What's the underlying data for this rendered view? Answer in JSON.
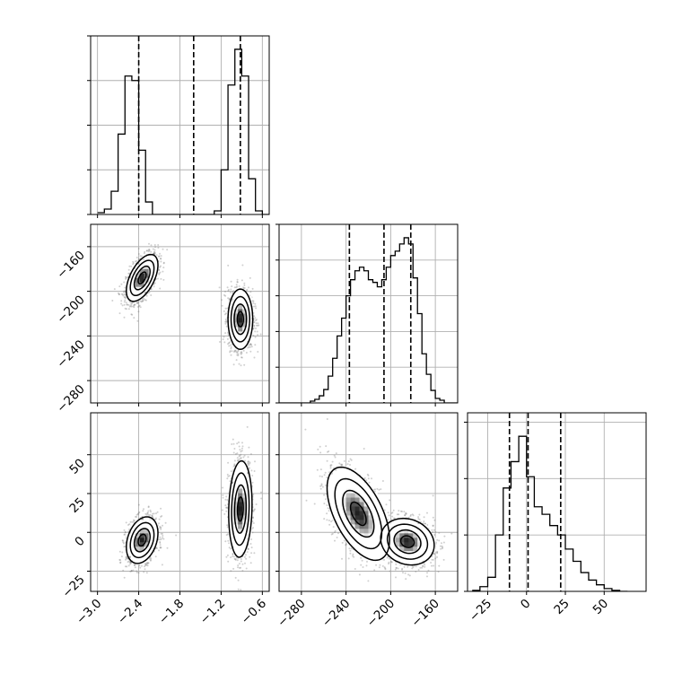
{
  "colors": {
    "line": "#000000",
    "grid": "#b0b0b0",
    "scatter": "#777777",
    "background": "#ffffff"
  },
  "chart_data": {
    "type": "corner",
    "grid": true,
    "parameters": [
      {
        "range": [
          -3.1,
          -0.5
        ],
        "ticks": [
          "-3.0",
          "-2.4",
          "-1.8",
          "-1.2",
          "-0.6"
        ],
        "tick_values": [
          -3.0,
          -2.4,
          -1.8,
          -1.2,
          -0.6
        ],
        "quantiles": [
          -2.4,
          -1.6,
          -0.92
        ]
      },
      {
        "range": [
          -300,
          -140
        ],
        "ticks": [
          "-280",
          "-240",
          "-200",
          "-160"
        ],
        "tick_values": [
          -280,
          -240,
          -200,
          -160
        ],
        "quantiles": [
          -237,
          -206,
          -182
        ]
      },
      {
        "range": [
          -38,
          77
        ],
        "ticks": [
          "-25",
          "0",
          "25",
          "50"
        ],
        "tick_values": [
          -25,
          0,
          25,
          50
        ],
        "quantiles": [
          -11,
          1,
          22
        ]
      }
    ],
    "histograms": [
      {
        "param": 0,
        "bin_edges": [
          -3.0,
          -2.9,
          -2.8,
          -2.7,
          -2.6,
          -2.5,
          -2.4,
          -2.3,
          -2.2,
          -2.1,
          -2.0,
          -1.9,
          -1.8,
          -1.7,
          -1.6,
          -1.5,
          -1.4,
          -1.3,
          -1.2,
          -1.1,
          -1.0,
          -0.9,
          -0.8,
          -0.7,
          -0.6,
          -0.5
        ],
        "counts": [
          2,
          6,
          26,
          90,
          155,
          150,
          72,
          14,
          0,
          0,
          0,
          0,
          0,
          0,
          0,
          0,
          0,
          4,
          50,
          145,
          185,
          155,
          40,
          4,
          0
        ],
        "ylim": [
          0,
          200
        ],
        "yticks": [
          0,
          50,
          100,
          150,
          200
        ]
      },
      {
        "param": 1,
        "bin_edges": [
          -300,
          -296,
          -292,
          -288,
          -284,
          -280,
          -276,
          -272,
          -268,
          -264,
          -260,
          -256,
          -252,
          -248,
          -244,
          -240,
          -236,
          -232,
          -228,
          -224,
          -220,
          -216,
          -212,
          -208,
          -204,
          -200,
          -196,
          -192,
          -188,
          -184,
          -180,
          -176,
          -172,
          -168,
          -164,
          -160,
          -156,
          -152,
          -148,
          -144,
          -140
        ],
        "counts": [
          0,
          0,
          0,
          0,
          0,
          0,
          0,
          2,
          4,
          8,
          15,
          30,
          50,
          75,
          95,
          120,
          138,
          148,
          152,
          148,
          138,
          135,
          130,
          138,
          152,
          165,
          170,
          178,
          185,
          178,
          140,
          100,
          55,
          32,
          14,
          5,
          3,
          0,
          0,
          0
        ],
        "ylim": [
          0,
          200
        ],
        "yticks": [
          0,
          40,
          80,
          120,
          160,
          200
        ]
      },
      {
        "param": 2,
        "bin_edges": [
          -35,
          -30,
          -25,
          -20,
          -15,
          -10,
          -5,
          0,
          5,
          10,
          15,
          20,
          25,
          30,
          35,
          40,
          45,
          50,
          55,
          60,
          65
        ],
        "counts": [
          1,
          5,
          15,
          60,
          110,
          138,
          165,
          122,
          90,
          82,
          70,
          60,
          45,
          32,
          20,
          12,
          7,
          3,
          1,
          0
        ],
        "ylim": [
          0,
          190
        ],
        "yticks": [
          0,
          60,
          120,
          180
        ]
      }
    ],
    "pairs": [
      {
        "x_param": 0,
        "y_param": 1,
        "clusters": [
          {
            "center": [
              -2.35,
              -188
            ],
            "sx": 0.115,
            "sy": 10.5,
            "rho": 0.55,
            "weight": 0.5
          },
          {
            "center": [
              -0.92,
              -225
            ],
            "sx": 0.09,
            "sy": 13.5,
            "rho": 0.0,
            "weight": 0.5
          }
        ]
      },
      {
        "x_param": 0,
        "y_param": 2,
        "clusters": [
          {
            "center": [
              -2.35,
              -5
            ],
            "sx": 0.115,
            "sy": 7.5,
            "rho": 0.3,
            "weight": 0.5
          },
          {
            "center": [
              -0.92,
              15
            ],
            "sx": 0.085,
            "sy": 15.5,
            "rho": 0.1,
            "weight": 0.5
          }
        ]
      },
      {
        "x_param": 1,
        "y_param": 2,
        "clusters": [
          {
            "center": [
              -185,
              -6
            ],
            "sx": 12,
            "sy": 7.5,
            "rho": -0.15,
            "weight": 0.5
          },
          {
            "center": [
              -229,
              12
            ],
            "sx": 14,
            "sy": 15,
            "rho": -0.55,
            "weight": 0.5
          }
        ]
      }
    ]
  }
}
